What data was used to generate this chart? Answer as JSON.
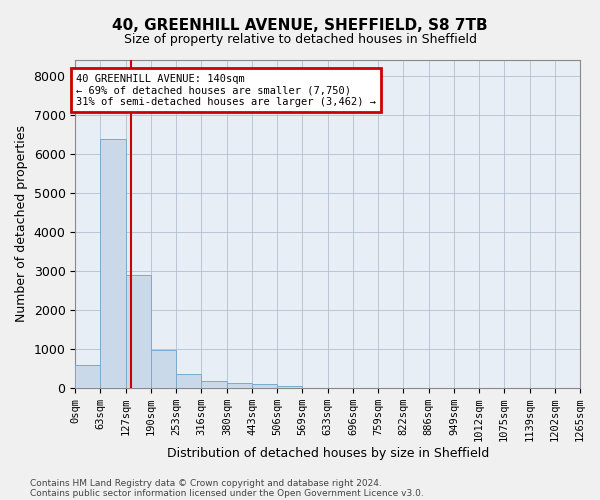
{
  "title1": "40, GREENHILL AVENUE, SHEFFIELD, S8 7TB",
  "title2": "Size of property relative to detached houses in Sheffield",
  "xlabel": "Distribution of detached houses by size in Sheffield",
  "ylabel": "Number of detached properties",
  "bin_edges": [
    0,
    63,
    127,
    190,
    253,
    316,
    380,
    443,
    506,
    569,
    633,
    696,
    759,
    822,
    886,
    949,
    1012,
    1075,
    1139,
    1202,
    1265
  ],
  "bar_heights": [
    580,
    6380,
    2900,
    980,
    370,
    190,
    120,
    90,
    60,
    0,
    0,
    0,
    0,
    0,
    0,
    0,
    0,
    0,
    0,
    0
  ],
  "bar_color": "#c9d9ea",
  "bar_edgecolor": "#7aaacc",
  "red_line_x": 140,
  "annotation_title": "40 GREENHILL AVENUE: 140sqm",
  "annotation_line1": "← 69% of detached houses are smaller (7,750)",
  "annotation_line2": "31% of semi-detached houses are larger (3,462) →",
  "annotation_box_color": "#ffffff",
  "annotation_box_edgecolor": "#cc0000",
  "ylim": [
    0,
    8400
  ],
  "yticks": [
    0,
    1000,
    2000,
    3000,
    4000,
    5000,
    6000,
    7000,
    8000
  ],
  "footer1": "Contains HM Land Registry data © Crown copyright and database right 2024.",
  "footer2": "Contains public sector information licensed under the Open Government Licence v3.0.",
  "background_color": "#f0f0f0",
  "plot_background": "#e8eef5",
  "grid_color": "#b0c0d0",
  "title1_fontsize": 11,
  "title2_fontsize": 9,
  "ylabel_fontsize": 9,
  "xlabel_fontsize": 9
}
